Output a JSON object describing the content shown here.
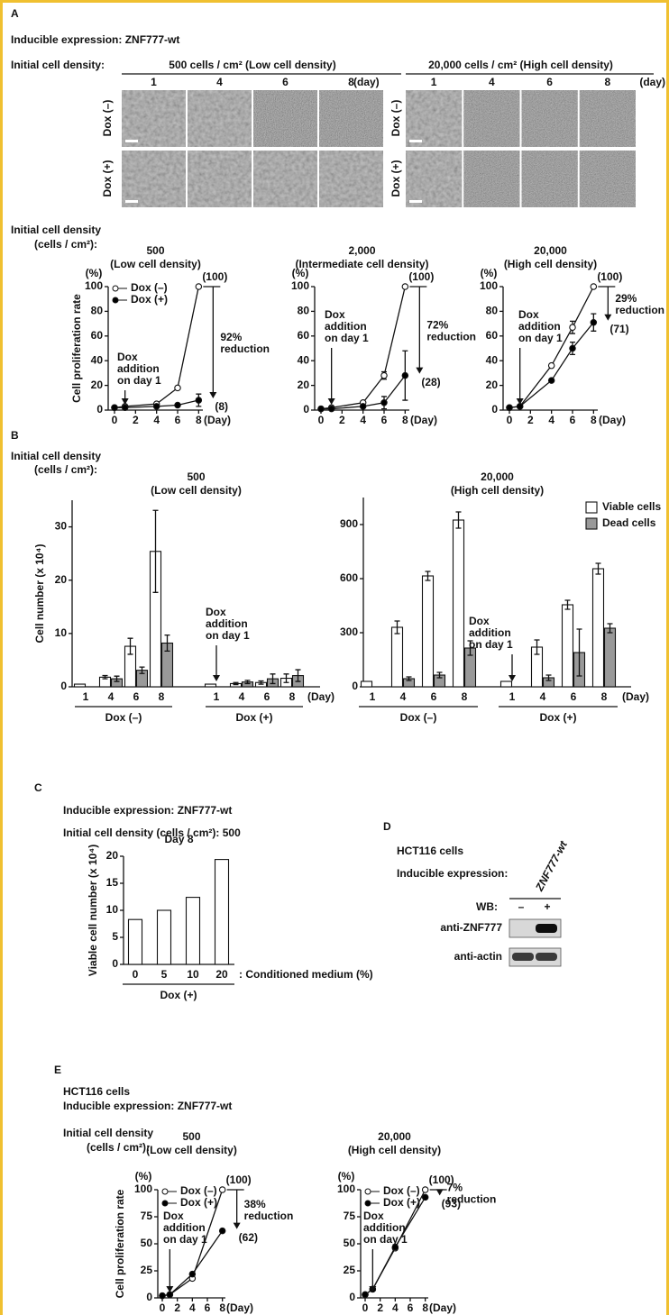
{
  "panels": {
    "A": {
      "label": "A",
      "expression": "Inducible expression: ZNF777-wt",
      "density_label": "Initial cell density:",
      "low": "500 cells / cm² (Low cell density)",
      "high": "20,000 cells / cm² (High cell density)",
      "days": [
        "1",
        "4",
        "6",
        "8"
      ],
      "day_unit": "(day)",
      "rows": [
        "Dox (–)",
        "Dox (+)"
      ],
      "density_lines": [
        "Initial cell density",
        "(cells / cm²):"
      ]
    },
    "B": {
      "label": "B",
      "density_lines": [
        "Initial cell density",
        "(cells / cm²):"
      ]
    },
    "C": {
      "label": "C",
      "expression": "Inducible expression: ZNF777-wt",
      "density": "Initial cell density (cells / cm²): 500"
    },
    "D": {
      "label": "D",
      "cells": "HCT116 cells",
      "expression": "Inducible expression:",
      "construct": "ZNF777-wt",
      "wb": "WB:",
      "lanes": [
        "–",
        "+"
      ],
      "blots": [
        "anti-ZNF777",
        "anti-actin"
      ]
    },
    "E": {
      "label": "E",
      "cells": "HCT116 cells",
      "expression": "Inducible expression: ZNF777-wt",
      "density_lines": [
        "Initial cell density",
        "(cells / cm²):"
      ]
    }
  },
  "chart_data": [
    {
      "type": "line",
      "title": "500",
      "subtitle": "(Low cell density)",
      "y_label": "Cell proliferation rate",
      "y_unit": "(%)",
      "x_unit": "(Day)",
      "x": [
        0,
        1,
        4,
        6,
        8
      ],
      "xlim": [
        -0.6,
        8.4
      ],
      "xticks": [
        0,
        2,
        4,
        6,
        8
      ],
      "ylim": [
        0,
        100
      ],
      "yticks": [
        0,
        20,
        40,
        60,
        80,
        100
      ],
      "series": [
        {
          "name": "Dox (–)",
          "color": "#ffffff",
          "values": [
            2,
            3,
            5,
            18,
            100
          ],
          "errors": [
            null,
            null,
            null,
            null,
            null
          ]
        },
        {
          "name": "Dox (+)",
          "color": "#000000",
          "values": [
            2,
            2,
            3,
            4,
            8
          ],
          "errors": [
            null,
            null,
            null,
            null,
            5
          ]
        }
      ],
      "annotations": {
        "end_value": "(100)",
        "final_value": "(8)",
        "reduction": [
          "92%",
          "reduction"
        ],
        "dox": [
          "Dox",
          "addition",
          "on day 1"
        ]
      }
    },
    {
      "type": "line",
      "title": "2,000",
      "subtitle": "(Intermediate cell density)",
      "y_unit": "(%)",
      "x_unit": "(Day)",
      "x": [
        0,
        1,
        4,
        6,
        8
      ],
      "xlim": [
        -0.6,
        8.4
      ],
      "xticks": [
        0,
        2,
        4,
        6,
        8
      ],
      "ylim": [
        0,
        100
      ],
      "yticks": [
        0,
        20,
        40,
        60,
        80,
        100
      ],
      "series": [
        {
          "color": "#ffffff",
          "values": [
            1,
            2,
            6,
            28,
            100
          ],
          "errors": [
            null,
            null,
            null,
            3,
            null
          ]
        },
        {
          "color": "#000000",
          "values": [
            1,
            1,
            3,
            6,
            28
          ],
          "errors": [
            null,
            null,
            null,
            5,
            20
          ]
        }
      ],
      "annotations": {
        "end_value": "(100)",
        "final_value": "(28)",
        "reduction": [
          "72%",
          "reduction"
        ],
        "dox": [
          "Dox",
          "addition",
          "on day 1"
        ]
      }
    },
    {
      "type": "line",
      "title": "20,000",
      "subtitle": "(High cell density)",
      "y_unit": "(%)",
      "x_unit": "(Day)",
      "x": [
        0,
        1,
        4,
        6,
        8
      ],
      "xlim": [
        -0.6,
        8.4
      ],
      "xticks": [
        0,
        2,
        4,
        6,
        8
      ],
      "ylim": [
        0,
        100
      ],
      "yticks": [
        0,
        20,
        40,
        60,
        80,
        100
      ],
      "series": [
        {
          "color": "#ffffff",
          "values": [
            2,
            3,
            36,
            67,
            100
          ],
          "errors": [
            null,
            null,
            null,
            5,
            null
          ]
        },
        {
          "color": "#000000",
          "values": [
            2,
            3,
            24,
            50,
            71
          ],
          "errors": [
            null,
            null,
            null,
            5,
            7
          ]
        }
      ],
      "annotations": {
        "end_value": "(100)",
        "final_value": "(71)",
        "reduction": [
          "29%",
          "reduction"
        ],
        "dox": [
          "Dox",
          "addition",
          "on day 1"
        ]
      }
    },
    {
      "type": "bar",
      "title": "500",
      "subtitle": "(Low cell density)",
      "y_label": "Cell number (x 10⁴)",
      "x_unit": "(Day)",
      "categories": [
        "1",
        "4",
        "6",
        "8",
        "1",
        "4",
        "6",
        "8"
      ],
      "groups": [
        "Dox (–)",
        "Dox (+)"
      ],
      "ylim": [
        0,
        35
      ],
      "yticks": [
        0,
        10,
        20,
        30
      ],
      "series": [
        {
          "color": "#ffffff",
          "values": [
            0.5,
            1.8,
            7.6,
            25.4,
            0.5,
            0.6,
            0.8,
            1.6
          ],
          "errors": [
            null,
            0.3,
            1.5,
            7.7,
            null,
            0.2,
            0.3,
            0.8
          ]
        },
        {
          "color": "#999999",
          "values": [
            null,
            1.5,
            3.1,
            8.2,
            null,
            0.9,
            1.5,
            2.1
          ],
          "errors": [
            null,
            0.5,
            0.6,
            1.5,
            null,
            0.3,
            0.9,
            1.1
          ]
        }
      ],
      "annotations": {
        "dox": [
          "Dox",
          "addition",
          "on day 1"
        ]
      }
    },
    {
      "type": "bar",
      "title": "20,000",
      "subtitle": "(High cell density)",
      "x_unit": "(Day)",
      "categories": [
        "1",
        "4",
        "6",
        "8",
        "1",
        "4",
        "6",
        "8"
      ],
      "groups": [
        "Dox (–)",
        "Dox (+)"
      ],
      "ylim": [
        0,
        1050
      ],
      "yticks": [
        0,
        300,
        600,
        900
      ],
      "series": [
        {
          "name": "Viable cells",
          "color": "#ffffff",
          "values": [
            30,
            330,
            615,
            925,
            30,
            220,
            455,
            655
          ],
          "errors": [
            null,
            35,
            25,
            45,
            null,
            40,
            25,
            30
          ]
        },
        {
          "name": "Dead cells",
          "color": "#999999",
          "values": [
            null,
            45,
            65,
            215,
            null,
            50,
            190,
            325
          ],
          "errors": [
            null,
            10,
            15,
            40,
            null,
            15,
            130,
            25
          ]
        }
      ],
      "annotations": {
        "dox": [
          "Dox",
          "addition",
          "on day 1"
        ]
      }
    },
    {
      "type": "bar",
      "title": "Day 8",
      "y_label": "Viable cell number (x 10⁴)",
      "x_unit": ": Conditioned medium (%)",
      "categories": [
        "0",
        "5",
        "10",
        "20"
      ],
      "groups": [
        "Dox (+)"
      ],
      "ylim": [
        0,
        20
      ],
      "yticks": [
        0,
        5,
        10,
        15,
        20
      ],
      "series": [
        {
          "color": "#ffffff",
          "values": [
            8.3,
            10,
            12.4,
            19.4
          ]
        }
      ]
    },
    {
      "type": "line",
      "title": "500",
      "subtitle": "(Low cell density)",
      "y_label": "Cell proliferation rate",
      "y_unit": "(%)",
      "x_unit": "(Day)",
      "x": [
        0,
        1,
        4,
        8
      ],
      "xlim": [
        -0.6,
        8.4
      ],
      "xticks": [
        0,
        2,
        4,
        6,
        8
      ],
      "ylim": [
        0,
        100
      ],
      "yticks": [
        0,
        25,
        50,
        75,
        100
      ],
      "series": [
        {
          "name": "Dox (–)",
          "color": "#ffffff",
          "values": [
            2,
            3,
            18,
            100
          ]
        },
        {
          "name": "Dox (+)",
          "color": "#000000",
          "values": [
            2,
            3,
            22,
            62
          ]
        }
      ],
      "annotations": {
        "end_value": "(100)",
        "final_value": "(62)",
        "reduction": [
          "38%",
          "reduction"
        ],
        "dox": [
          "Dox",
          "addition",
          "on day 1"
        ]
      }
    },
    {
      "type": "line",
      "title": "20,000",
      "subtitle": "(High cell density)",
      "y_unit": "(%)",
      "x_unit": "(Day)",
      "x": [
        0,
        1,
        4,
        8
      ],
      "xlim": [
        -0.6,
        8.4
      ],
      "xticks": [
        0,
        2,
        4,
        6,
        8
      ],
      "ylim": [
        0,
        100
      ],
      "yticks": [
        0,
        25,
        50,
        75,
        100
      ],
      "series": [
        {
          "name": "Dox (–)",
          "color": "#ffffff",
          "values": [
            3,
            8,
            46,
            100
          ]
        },
        {
          "name": "Dox (+)",
          "color": "#000000",
          "values": [
            3,
            8,
            47,
            93
          ]
        }
      ],
      "annotations": {
        "end_value": "(100)",
        "final_value": "(93)",
        "reduction": [
          "7%",
          "reduction"
        ],
        "dox": [
          "Dox",
          "addition",
          "on day 1"
        ]
      }
    }
  ]
}
